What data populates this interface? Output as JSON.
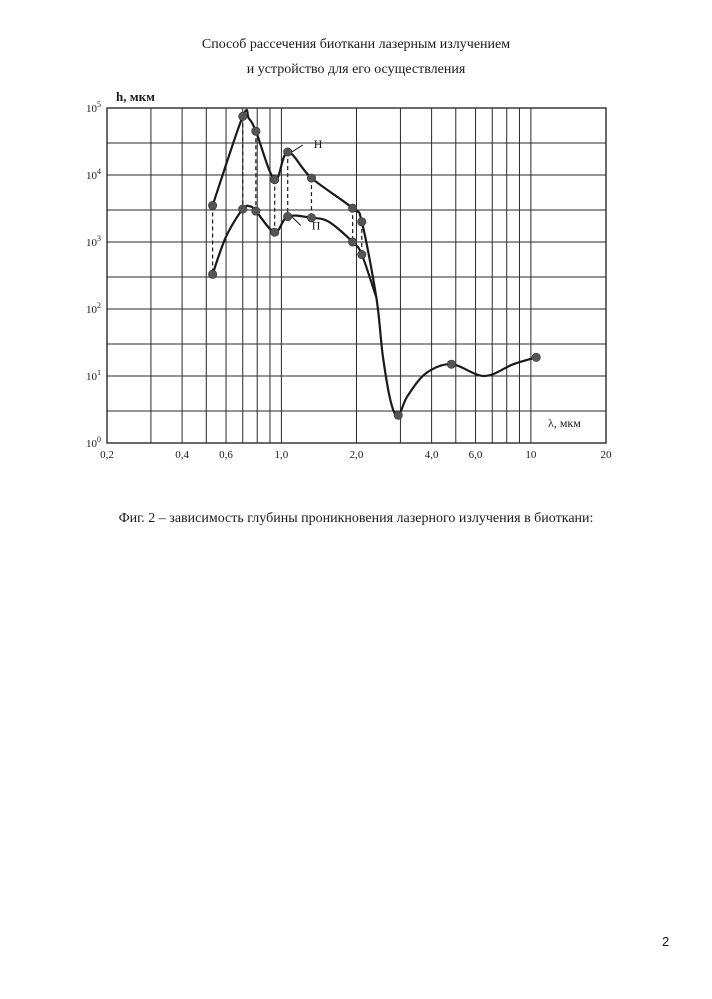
{
  "header": {
    "title_line1": "Способ рассечения биоткани лазерным излучением",
    "title_line2": "и устройство для его осуществления"
  },
  "figure": {
    "caption": "Фиг. 2 – зависимость глубины проникновения лазерного излучения в биоткани:"
  },
  "page_number": "2",
  "chart_data": {
    "type": "line",
    "title": "",
    "xlabel": "λ, мкм",
    "ylabel": "h, мкм",
    "x_scale": "log",
    "y_scale": "log",
    "xlim": [
      0.2,
      20
    ],
    "ylim": [
      1,
      100000
    ],
    "grid": true,
    "x_ticks": [
      {
        "value": 0.2,
        "label": "0,2"
      },
      {
        "value": 0.4,
        "label": "0,4"
      },
      {
        "value": 0.6,
        "label": "0,6"
      },
      {
        "value": 1.0,
        "label": "1,0"
      },
      {
        "value": 2.0,
        "label": "2,0"
      },
      {
        "value": 4.0,
        "label": "4,0"
      },
      {
        "value": 6.0,
        "label": "6,0"
      },
      {
        "value": 10,
        "label": "10"
      },
      {
        "value": 20,
        "label": "20"
      }
    ],
    "y_ticks": [
      {
        "value": 1,
        "base": "10",
        "exp": "0"
      },
      {
        "value": 10,
        "base": "10",
        "exp": "1"
      },
      {
        "value": 100,
        "base": "10",
        "exp": "2"
      },
      {
        "value": 1000,
        "base": "10",
        "exp": "3"
      },
      {
        "value": 10000,
        "base": "10",
        "exp": "4"
      },
      {
        "value": 100000,
        "base": "10",
        "exp": "5"
      }
    ],
    "x_grid": [
      0.2,
      0.3,
      0.4,
      0.5,
      0.6,
      0.7,
      0.8,
      0.9,
      1.0,
      2.0,
      3.0,
      4.0,
      5.0,
      6.0,
      7.0,
      8.0,
      9.0,
      10,
      20
    ],
    "y_grid": [
      1,
      3,
      10,
      30,
      100,
      300,
      1000,
      3000,
      10000,
      30000,
      100000
    ],
    "series": [
      {
        "name": "Н",
        "points": [
          {
            "x": 0.53,
            "y": 3500
          },
          {
            "x": 0.7,
            "y": 75000
          },
          {
            "x": 0.79,
            "y": 45000
          },
          {
            "x": 0.94,
            "y": 8500
          },
          {
            "x": 1.06,
            "y": 22000
          },
          {
            "x": 1.32,
            "y": 9000
          },
          {
            "x": 1.93,
            "y": 3200
          },
          {
            "x": 2.1,
            "y": 2000
          }
        ],
        "curve": [
          {
            "x": 0.53,
            "y": 3500
          },
          {
            "x": 0.7,
            "y": 75000
          },
          {
            "x": 0.74,
            "y": 70000
          },
          {
            "x": 0.79,
            "y": 45000
          },
          {
            "x": 0.94,
            "y": 8500
          },
          {
            "x": 1.06,
            "y": 22000
          },
          {
            "x": 1.32,
            "y": 9000
          },
          {
            "x": 1.93,
            "y": 3200
          },
          {
            "x": 2.1,
            "y": 2000
          },
          {
            "x": 2.4,
            "y": 150
          },
          {
            "x": 2.55,
            "y": 20
          },
          {
            "x": 2.75,
            "y": 4
          },
          {
            "x": 2.94,
            "y": 2.6
          },
          {
            "x": 3.2,
            "y": 5
          },
          {
            "x": 3.8,
            "y": 11
          },
          {
            "x": 4.8,
            "y": 15
          },
          {
            "x": 6.5,
            "y": 10
          },
          {
            "x": 8.5,
            "y": 15
          },
          {
            "x": 10.5,
            "y": 19
          }
        ]
      },
      {
        "name": "П",
        "points": [
          {
            "x": 0.53,
            "y": 330
          },
          {
            "x": 0.7,
            "y": 3100
          },
          {
            "x": 0.79,
            "y": 2900
          },
          {
            "x": 0.94,
            "y": 1400
          },
          {
            "x": 1.06,
            "y": 2400
          },
          {
            "x": 1.32,
            "y": 2300
          },
          {
            "x": 1.93,
            "y": 1000
          },
          {
            "x": 2.1,
            "y": 650
          },
          {
            "x": 2.94,
            "y": 2.6
          },
          {
            "x": 4.8,
            "y": 15
          },
          {
            "x": 10.5,
            "y": 19
          }
        ],
        "curve": [
          {
            "x": 0.53,
            "y": 330
          },
          {
            "x": 0.6,
            "y": 1200
          },
          {
            "x": 0.7,
            "y": 3100
          },
          {
            "x": 0.75,
            "y": 3400
          },
          {
            "x": 0.79,
            "y": 2900
          },
          {
            "x": 0.94,
            "y": 1400
          },
          {
            "x": 1.06,
            "y": 2400
          },
          {
            "x": 1.32,
            "y": 2300
          },
          {
            "x": 1.55,
            "y": 2000
          },
          {
            "x": 1.93,
            "y": 1000
          },
          {
            "x": 2.1,
            "y": 650
          },
          {
            "x": 2.4,
            "y": 150
          }
        ]
      }
    ],
    "connectors_x": [
      0.53,
      0.7,
      0.79,
      0.94,
      1.06,
      1.32,
      1.93,
      2.1
    ],
    "annotations": [
      {
        "text": "Н",
        "series": "Н",
        "x": 1.06,
        "y": 22000
      },
      {
        "text": "П",
        "series": "П",
        "x": 1.06,
        "y": 2400
      }
    ],
    "colors": {
      "line": "#1a1a1a",
      "marker": "#555555",
      "grid": "#2a2a2a"
    }
  }
}
